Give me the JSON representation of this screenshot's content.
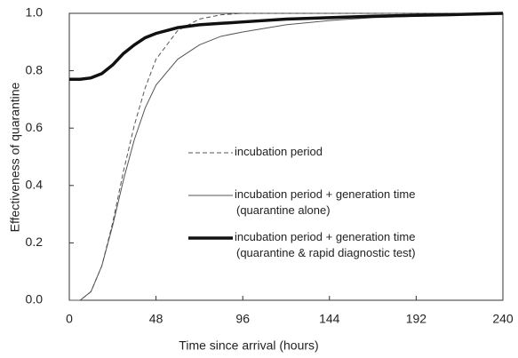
{
  "chart_data": {
    "type": "line",
    "x_label": "Time since arrival (hours)",
    "y_label": "Effectiveness of quarantine",
    "x": [
      0,
      6,
      12,
      18,
      24,
      30,
      36,
      42,
      48,
      60,
      72,
      84,
      96,
      120,
      144,
      168,
      192,
      216,
      240
    ],
    "series": [
      {
        "name": "incubation period",
        "color": "#555555",
        "dash": true,
        "width": 1,
        "values": [
          0,
          0,
          0.03,
          0.12,
          0.27,
          0.45,
          0.61,
          0.74,
          0.84,
          0.94,
          0.98,
          0.995,
          1,
          1,
          1,
          1,
          1,
          1,
          1
        ]
      },
      {
        "name": "incubation period + generation time (quarantine alone)",
        "color": "#555555",
        "dash": false,
        "width": 1,
        "values": [
          0,
          0,
          0.03,
          0.12,
          0.26,
          0.42,
          0.56,
          0.67,
          0.75,
          0.84,
          0.89,
          0.92,
          0.935,
          0.96,
          0.975,
          0.985,
          0.99,
          0.995,
          1
        ]
      },
      {
        "name": "incubation period + generation time (quarantine & rapid diagnostic test)",
        "color": "#111111",
        "dash": false,
        "width": 3.5,
        "values": [
          0.77,
          0.77,
          0.775,
          0.79,
          0.82,
          0.86,
          0.89,
          0.915,
          0.93,
          0.95,
          0.96,
          0.965,
          0.97,
          0.98,
          0.985,
          0.99,
          0.993,
          0.996,
          1
        ]
      }
    ],
    "xlim": [
      0,
      240
    ],
    "xticks": [
      0,
      48,
      96,
      144,
      192,
      240
    ],
    "ylim": [
      0,
      1
    ],
    "yticks": [
      {
        "value": 0,
        "label": "0.0"
      },
      {
        "value": 0.2,
        "label": "0.2"
      },
      {
        "value": 0.4,
        "label": "0.4"
      },
      {
        "value": 0.6,
        "label": "0.6"
      },
      {
        "value": 0.8,
        "label": "0.8"
      },
      {
        "value": 1,
        "label": "1.0"
      }
    ],
    "grid": false
  }
}
